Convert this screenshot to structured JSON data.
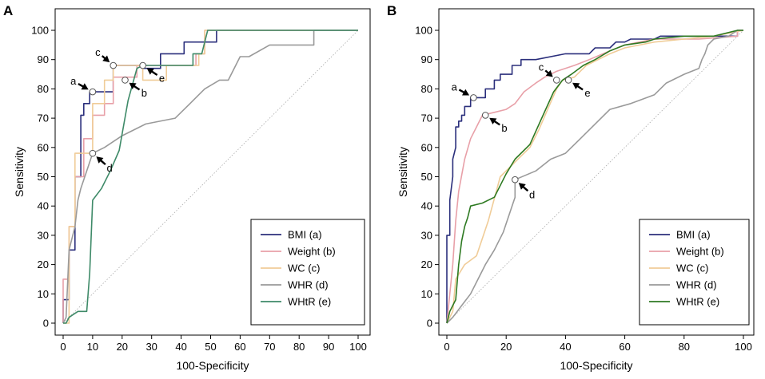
{
  "chart_data": [
    {
      "panel": "A",
      "type": "line",
      "xlabel": "100-Specificity",
      "ylabel": "Sensitivity",
      "xlim": [
        0,
        100
      ],
      "ylim": [
        0,
        100
      ],
      "xticks": [
        0,
        10,
        20,
        30,
        40,
        50,
        60,
        70,
        80,
        90,
        100
      ],
      "yticks": [
        0,
        10,
        20,
        30,
        40,
        50,
        60,
        70,
        80,
        90,
        100
      ],
      "legend_position": "bottom-right",
      "diagonal": true,
      "series": [
        {
          "name": "BMI (a)",
          "color": "#2b2f7c",
          "points": [
            [
              0,
              0
            ],
            [
              0,
              8
            ],
            [
              2,
              8
            ],
            [
              2,
              25
            ],
            [
              4,
              25
            ],
            [
              4,
              50
            ],
            [
              6,
              50
            ],
            [
              6,
              71
            ],
            [
              7,
              71
            ],
            [
              7,
              75
            ],
            [
              9,
              75
            ],
            [
              9,
              79
            ],
            [
              17,
              79
            ],
            [
              17,
              88
            ],
            [
              27,
              88
            ],
            [
              27,
              87
            ],
            [
              33,
              87
            ],
            [
              33,
              92
            ],
            [
              41,
              92
            ],
            [
              41,
              96
            ],
            [
              52,
              96
            ],
            [
              52,
              100
            ],
            [
              100,
              100
            ]
          ]
        },
        {
          "name": "Weight (b)",
          "color": "#e8a0a8",
          "points": [
            [
              0,
              0
            ],
            [
              0,
              15
            ],
            [
              2,
              15
            ],
            [
              2,
              33
            ],
            [
              4,
              33
            ],
            [
              4,
              50
            ],
            [
              7,
              50
            ],
            [
              7,
              63
            ],
            [
              10,
              63
            ],
            [
              10,
              71
            ],
            [
              14,
              71
            ],
            [
              14,
              75
            ],
            [
              17,
              75
            ],
            [
              17,
              84
            ],
            [
              25,
              84
            ],
            [
              25,
              88
            ],
            [
              30,
              88
            ],
            [
              30,
              88
            ],
            [
              45,
              88
            ],
            [
              45,
              92
            ],
            [
              48,
              92
            ],
            [
              48,
              100
            ],
            [
              100,
              100
            ]
          ]
        },
        {
          "name": "WC (c)",
          "color": "#f0cc98",
          "points": [
            [
              0,
              0
            ],
            [
              2,
              0
            ],
            [
              2,
              33
            ],
            [
              4,
              33
            ],
            [
              4,
              58
            ],
            [
              10,
              58
            ],
            [
              10,
              75
            ],
            [
              14,
              75
            ],
            [
              14,
              83
            ],
            [
              17,
              83
            ],
            [
              17,
              88
            ],
            [
              27,
              88
            ],
            [
              27,
              83
            ],
            [
              35,
              83
            ],
            [
              35,
              88
            ],
            [
              46,
              88
            ],
            [
              46,
              92
            ],
            [
              48,
              92
            ],
            [
              48,
              100
            ],
            [
              100,
              100
            ]
          ]
        },
        {
          "name": "WHR (d)",
          "color": "#9a9a9a",
          "points": [
            [
              0,
              0
            ],
            [
              1,
              2
            ],
            [
              2,
              25
            ],
            [
              4,
              33
            ],
            [
              5,
              42
            ],
            [
              6,
              46
            ],
            [
              8,
              52
            ],
            [
              10,
              58
            ],
            [
              14,
              60
            ],
            [
              20,
              64
            ],
            [
              28,
              68
            ],
            [
              38,
              70
            ],
            [
              43,
              75
            ],
            [
              48,
              80
            ],
            [
              53,
              83
            ],
            [
              56,
              83
            ],
            [
              60,
              91
            ],
            [
              63,
              91
            ],
            [
              70,
              95
            ],
            [
              85,
              95
            ],
            [
              85,
              100
            ],
            [
              100,
              100
            ]
          ]
        },
        {
          "name": "WHtR (e)",
          "color": "#3e8a68",
          "points": [
            [
              0,
              0
            ],
            [
              1,
              0
            ],
            [
              2,
              2
            ],
            [
              5,
              4
            ],
            [
              8,
              4
            ],
            [
              9,
              17
            ],
            [
              10,
              42
            ],
            [
              13,
              46
            ],
            [
              16,
              52
            ],
            [
              19,
              59
            ],
            [
              22,
              76
            ],
            [
              25,
              87
            ],
            [
              27,
              88
            ],
            [
              44,
              88
            ],
            [
              44,
              92
            ],
            [
              47,
              92
            ],
            [
              49,
              100
            ],
            [
              100,
              100
            ]
          ]
        }
      ],
      "annotations": [
        {
          "label": "a",
          "x": 10,
          "y": 79
        },
        {
          "label": "b",
          "x": 21,
          "y": 83
        },
        {
          "label": "c",
          "x": 17,
          "y": 88
        },
        {
          "label": "d",
          "x": 10,
          "y": 58
        },
        {
          "label": "e",
          "x": 27,
          "y": 88
        }
      ]
    },
    {
      "panel": "B",
      "type": "line",
      "xlabel": "100-Specificity",
      "ylabel": "Sensitivity",
      "xlim": [
        0,
        100
      ],
      "ylim": [
        0,
        100
      ],
      "xticks": [
        0,
        20,
        40,
        60,
        80,
        100
      ],
      "yticks": [
        0,
        10,
        20,
        30,
        40,
        50,
        60,
        70,
        80,
        90,
        100
      ],
      "legend_position": "bottom-right",
      "diagonal": true,
      "series": [
        {
          "name": "BMI (a)",
          "color": "#2b2f7c",
          "points": [
            [
              0,
              0
            ],
            [
              0,
              30
            ],
            [
              1,
              30
            ],
            [
              1,
              42
            ],
            [
              2,
              50
            ],
            [
              2,
              56
            ],
            [
              3,
              60
            ],
            [
              3,
              67
            ],
            [
              4,
              67
            ],
            [
              4,
              69
            ],
            [
              5,
              69
            ],
            [
              5,
              71
            ],
            [
              6,
              71
            ],
            [
              6,
              74
            ],
            [
              8,
              74
            ],
            [
              8,
              77
            ],
            [
              13,
              77
            ],
            [
              13,
              80
            ],
            [
              16,
              80
            ],
            [
              16,
              83
            ],
            [
              18,
              83
            ],
            [
              18,
              85
            ],
            [
              22,
              85
            ],
            [
              22,
              88
            ],
            [
              25,
              88
            ],
            [
              25,
              90
            ],
            [
              30,
              90
            ],
            [
              30,
              90
            ],
            [
              40,
              92
            ],
            [
              48,
              92
            ],
            [
              50,
              94
            ],
            [
              55,
              94
            ],
            [
              57,
              96
            ],
            [
              60,
              96
            ],
            [
              62,
              97
            ],
            [
              70,
              97
            ],
            [
              72,
              98
            ],
            [
              80,
              98
            ],
            [
              80,
              98
            ],
            [
              98,
              98
            ],
            [
              98,
              100
            ],
            [
              100,
              100
            ]
          ]
        },
        {
          "name": "Weight (b)",
          "color": "#e8a0a8",
          "points": [
            [
              0,
              0
            ],
            [
              1,
              10
            ],
            [
              2,
              20
            ],
            [
              3,
              35
            ],
            [
              4,
              45
            ],
            [
              6,
              56
            ],
            [
              8,
              63
            ],
            [
              10,
              67
            ],
            [
              12,
              71
            ],
            [
              16,
              72
            ],
            [
              20,
              73
            ],
            [
              23,
              75
            ],
            [
              26,
              79
            ],
            [
              30,
              82
            ],
            [
              33,
              84
            ],
            [
              37,
              86
            ],
            [
              43,
              88
            ],
            [
              48,
              90
            ],
            [
              55,
              93
            ],
            [
              60,
              95
            ],
            [
              65,
              96
            ],
            [
              70,
              97
            ],
            [
              85,
              97
            ],
            [
              98,
              98
            ],
            [
              98,
              100
            ],
            [
              100,
              100
            ]
          ]
        },
        {
          "name": "WC (c)",
          "color": "#f0cc98",
          "points": [
            [
              0,
              0
            ],
            [
              2,
              4
            ],
            [
              3,
              15
            ],
            [
              6,
              20
            ],
            [
              10,
              23
            ],
            [
              14,
              35
            ],
            [
              18,
              50
            ],
            [
              23,
              55
            ],
            [
              28,
              60
            ],
            [
              31,
              66
            ],
            [
              34,
              73
            ],
            [
              37,
              80
            ],
            [
              39,
              83
            ],
            [
              43,
              84
            ],
            [
              47,
              88
            ],
            [
              55,
              92
            ],
            [
              60,
              94
            ],
            [
              70,
              96
            ],
            [
              80,
              97
            ],
            [
              90,
              98
            ],
            [
              100,
              100
            ]
          ]
        },
        {
          "name": "WHR (d)",
          "color": "#9a9a9a",
          "points": [
            [
              0,
              0
            ],
            [
              2,
              2
            ],
            [
              5,
              6
            ],
            [
              8,
              10
            ],
            [
              10,
              14
            ],
            [
              13,
              20
            ],
            [
              16,
              25
            ],
            [
              19,
              31
            ],
            [
              21,
              37
            ],
            [
              23,
              43
            ],
            [
              23,
              49
            ],
            [
              30,
              52
            ],
            [
              35,
              56
            ],
            [
              40,
              58
            ],
            [
              45,
              63
            ],
            [
              50,
              68
            ],
            [
              55,
              73
            ],
            [
              62,
              75
            ],
            [
              70,
              78
            ],
            [
              74,
              82
            ],
            [
              80,
              85
            ],
            [
              85,
              87
            ],
            [
              86,
              90
            ],
            [
              87,
              92
            ],
            [
              88,
              95
            ],
            [
              90,
              97
            ],
            [
              95,
              98
            ],
            [
              98,
              100
            ],
            [
              100,
              100
            ]
          ]
        },
        {
          "name": "WHtR (e)",
          "color": "#2e7a22",
          "points": [
            [
              0,
              0
            ],
            [
              1,
              4
            ],
            [
              3,
              8
            ],
            [
              4,
              20
            ],
            [
              5,
              28
            ],
            [
              6,
              33
            ],
            [
              7,
              36
            ],
            [
              8,
              40
            ],
            [
              12,
              41
            ],
            [
              16,
              43
            ],
            [
              20,
              51
            ],
            [
              23,
              56
            ],
            [
              28,
              61
            ],
            [
              32,
              70
            ],
            [
              36,
              79
            ],
            [
              39,
              83
            ],
            [
              42,
              85
            ],
            [
              46,
              88
            ],
            [
              50,
              90
            ],
            [
              55,
              93
            ],
            [
              60,
              95
            ],
            [
              67,
              96
            ],
            [
              70,
              97
            ],
            [
              80,
              98
            ],
            [
              90,
              98
            ],
            [
              98,
              100
            ],
            [
              100,
              100
            ]
          ]
        }
      ],
      "annotations": [
        {
          "label": "a",
          "x": 9,
          "y": 77
        },
        {
          "label": "b",
          "x": 13,
          "y": 71
        },
        {
          "label": "c",
          "x": 37,
          "y": 83
        },
        {
          "label": "d",
          "x": 23,
          "y": 49
        },
        {
          "label": "e",
          "x": 41,
          "y": 83
        }
      ]
    }
  ]
}
